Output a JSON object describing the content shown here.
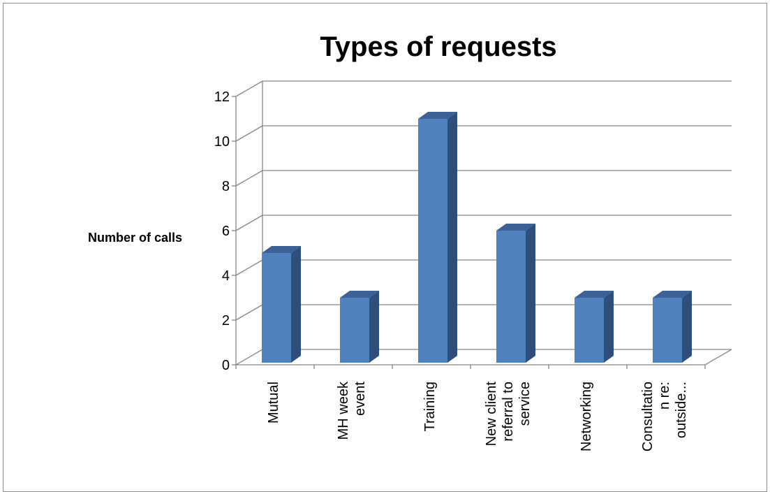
{
  "chart_data": {
    "type": "bar",
    "title": "Types of requests",
    "ylabel": "Number of calls",
    "xlabel": "",
    "categories": [
      [
        "Mutual"
      ],
      [
        "MH week",
        "event"
      ],
      [
        "Training"
      ],
      [
        "New client",
        "referral to",
        "service"
      ],
      [
        "Networking"
      ],
      [
        "Consultatio",
        "n re:",
        "outside..."
      ]
    ],
    "values": [
      5,
      3,
      11,
      6,
      3,
      3
    ],
    "ylim": [
      0,
      12
    ],
    "yticks": [
      0,
      2,
      4,
      6,
      8,
      10,
      12
    ],
    "grid": true,
    "legend": "none",
    "colors": {
      "bar_front": "#4f81bd",
      "bar_side": "#2f4f7b",
      "bar_top": "#3a6296",
      "grid": "#868686"
    }
  }
}
